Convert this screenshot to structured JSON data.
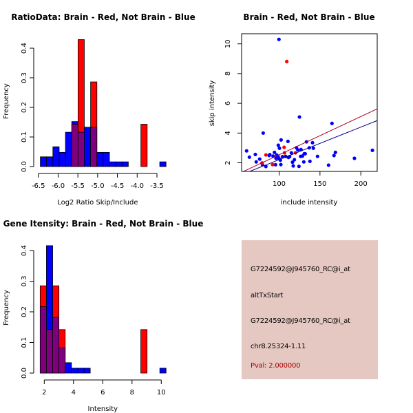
{
  "chart_data": [
    {
      "id": "ratio_hist",
      "type": "bar",
      "title": "RatioData: Brain - Red, Not Brain - Blue",
      "xlabel": "Log2 Ratio Skip/Include",
      "ylabel": "Frequency",
      "xlim": [
        -6.55,
        -3.25
      ],
      "ylim": [
        0,
        0.43
      ],
      "xticks": [
        -6.5,
        -6.0,
        -5.5,
        -5.0,
        -4.5,
        -4.0,
        -3.5
      ],
      "xtick_labels": [
        "-6.5",
        "-6.0",
        "-5.5",
        "-5.0",
        "-4.5",
        "-4.0",
        "-3.5"
      ],
      "yticks": [
        0.0,
        0.1,
        0.2,
        0.3,
        0.4
      ],
      "ytick_labels": [
        "0.0",
        "0.1",
        "0.2",
        "0.3",
        "0.4"
      ],
      "bin_width": 0.159,
      "series": [
        {
          "name": "Not Brain",
          "color": "#0000ff",
          "bins": [
            {
              "x0": -6.45,
              "value": 0.033
            },
            {
              "x0": -6.291,
              "value": 0.033
            },
            {
              "x0": -6.132,
              "value": 0.067
            },
            {
              "x0": -5.973,
              "value": 0.048
            },
            {
              "x0": -5.814,
              "value": 0.116
            },
            {
              "x0": -5.655,
              "value": 0.152
            },
            {
              "x0": -5.496,
              "value": 0.116
            },
            {
              "x0": -5.337,
              "value": 0.133
            },
            {
              "x0": -5.178,
              "value": 0.133
            },
            {
              "x0": -5.019,
              "value": 0.048
            },
            {
              "x0": -4.86,
              "value": 0.048
            },
            {
              "x0": -4.701,
              "value": 0.016
            },
            {
              "x0": -4.542,
              "value": 0.016
            },
            {
              "x0": -4.383,
              "value": 0.016
            },
            {
              "x0": -3.429,
              "value": 0.016
            }
          ]
        },
        {
          "name": "Brain",
          "color": "#ff0000",
          "bins": [
            {
              "x0": -5.655,
              "value": 0.143
            },
            {
              "x0": -5.496,
              "value": 0.429
            },
            {
              "x0": -5.178,
              "value": 0.286
            },
            {
              "x0": -3.906,
              "value": 0.143
            }
          ]
        }
      ],
      "overlap_color": "#7f007f"
    },
    {
      "id": "scatter",
      "type": "scatter",
      "title": "Brain - Red, Not Brain - Blue",
      "xlabel": "include intensity",
      "ylabel": "skip intensity",
      "xlim": [
        54,
        220
      ],
      "ylim": [
        1.4,
        10.75
      ],
      "xticks": [
        100,
        150,
        200
      ],
      "xtick_labels": [
        "100",
        "150",
        "200"
      ],
      "yticks": [
        2,
        4,
        6,
        8,
        10
      ],
      "ytick_labels": [
        "2",
        "4",
        "6",
        "8",
        "10"
      ],
      "series": [
        {
          "name": "Not Brain",
          "color": "#0000ff",
          "points": [
            [
              60.2,
              2.8
            ],
            [
              63.6,
              2.38
            ],
            [
              70.9,
              2.56
            ],
            [
              72.0,
              2.06
            ],
            [
              76.2,
              2.25
            ],
            [
              79.6,
              1.87
            ],
            [
              80.5,
              4.0
            ],
            [
              83.8,
              1.75
            ],
            [
              87.8,
              2.49
            ],
            [
              88.6,
              2.55
            ],
            [
              92.6,
              2.45
            ],
            [
              94.3,
              2.7
            ],
            [
              95.6,
              1.87
            ],
            [
              96.2,
              2.3
            ],
            [
              97.0,
              2.52
            ],
            [
              98.7,
              2.43
            ],
            [
              99.0,
              3.18
            ],
            [
              100.4,
              2.98
            ],
            [
              99.8,
              2.29
            ],
            [
              101.5,
              2.18
            ],
            [
              102.4,
              3.54
            ],
            [
              102.1,
              1.88
            ],
            [
              104.1,
              2.41
            ],
            [
              108.0,
              2.43
            ],
            [
              110.8,
              3.44
            ],
            [
              111.4,
              2.36
            ],
            [
              112.8,
              2.41
            ],
            [
              115.0,
              2.67
            ],
            [
              116.4,
              2.04
            ],
            [
              117.3,
              1.79
            ],
            [
              118.7,
              2.21
            ],
            [
              121.2,
              3.01
            ],
            [
              122.9,
              2.87
            ],
            [
              124.3,
              1.76
            ],
            [
              124.9,
              5.08
            ],
            [
              126.3,
              2.43
            ],
            [
              126.8,
              2.89
            ],
            [
              128.5,
              2.45
            ],
            [
              130.8,
              2.61
            ],
            [
              131.9,
              2.61
            ],
            [
              130.2,
              2.06
            ],
            [
              133.5,
              3.41
            ],
            [
              136.9,
              3.01
            ],
            [
              137.7,
              2.1
            ],
            [
              140.9,
              3.35
            ],
            [
              141.9,
              2.98
            ],
            [
              147.0,
              2.43
            ],
            [
              160.5,
              1.84
            ],
            [
              164.7,
              4.65
            ],
            [
              167.2,
              2.49
            ],
            [
              168.9,
              2.7
            ],
            [
              192.2,
              2.3
            ],
            [
              214.2,
              2.84
            ],
            [
              99.8,
              10.3
            ]
          ],
          "fit_line": {
            "intercept": 0.02,
            "slope": 0.0219
          }
        },
        {
          "name": "Brain",
          "color": "#ff0000",
          "points": [
            [
              83.8,
              2.53
            ],
            [
              79.1,
              1.99
            ],
            [
              92.0,
              1.88
            ],
            [
              106.1,
              3.04
            ],
            [
              106.6,
              2.67
            ],
            [
              120.0,
              2.67
            ],
            [
              109.4,
              8.81
            ]
          ],
          "fit_line": {
            "intercept": -0.03,
            "slope": 0.0257
          }
        }
      ],
      "line_colors": {
        "Not Brain": "#00008b",
        "Brain": "#b00020"
      }
    },
    {
      "id": "intensity_hist",
      "type": "bar",
      "title": "Gene Itensity: Brain - Red, Not Brain - Blue",
      "xlabel": "Intensity",
      "ylabel": "Frequency",
      "xlim": [
        1.4,
        10.7
      ],
      "ylim": [
        0,
        0.43
      ],
      "xticks": [
        2,
        4,
        6,
        8,
        10
      ],
      "xtick_labels": [
        "2",
        "4",
        "6",
        "8",
        "10"
      ],
      "yticks": [
        0.0,
        0.1,
        0.2,
        0.3,
        0.4
      ],
      "ytick_labels": [
        "0.0",
        "0.1",
        "0.2",
        "0.3",
        "0.4"
      ],
      "bin_width": 0.428,
      "series": [
        {
          "name": "Not Brain",
          "color": "#0000ff",
          "bins": [
            {
              "x0": 1.72,
              "value": 0.217
            },
            {
              "x0": 2.148,
              "value": 0.416
            },
            {
              "x0": 2.576,
              "value": 0.182
            },
            {
              "x0": 3.004,
              "value": 0.082
            },
            {
              "x0": 3.432,
              "value": 0.034
            },
            {
              "x0": 3.86,
              "value": 0.016
            },
            {
              "x0": 4.288,
              "value": 0.016
            },
            {
              "x0": 4.716,
              "value": 0.016
            },
            {
              "x0": 9.9,
              "value": 0.016
            }
          ]
        },
        {
          "name": "Brain",
          "color": "#ff0000",
          "bins": [
            {
              "x0": 1.72,
              "value": 0.285
            },
            {
              "x0": 2.148,
              "value": 0.142
            },
            {
              "x0": 2.576,
              "value": 0.285
            },
            {
              "x0": 3.004,
              "value": 0.142
            },
            {
              "x0": 8.6,
              "value": 0.142
            }
          ]
        }
      ],
      "overlap_color": "#7f007f"
    }
  ],
  "info_panel": {
    "background": "#e6c8c2",
    "lines": [
      "G7224592@J945760_RC@i_at",
      "altTxStart",
      "G7224592@J945760_RC@i_at",
      "chr8.25324-1.11"
    ],
    "pval": "Pval: 2.000000",
    "pval_color": "#a00000"
  }
}
